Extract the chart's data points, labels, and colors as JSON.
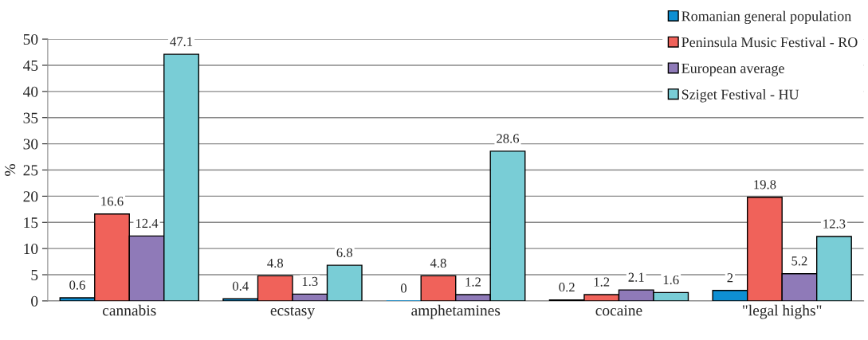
{
  "chart_data": {
    "type": "bar",
    "ylabel": "%",
    "categories": [
      "cannabis",
      "ecstasy",
      "amphetamines",
      "cocaine",
      "\"legal highs\""
    ],
    "series": [
      {
        "name": "Romanian general population",
        "color": "#0e8fd3",
        "values": [
          0.6,
          0.4,
          0,
          0.2,
          2
        ]
      },
      {
        "name": "Peninsula Music Festival - RO",
        "color": "#f0625a",
        "values": [
          16.6,
          4.8,
          4.8,
          1.2,
          19.8
        ]
      },
      {
        "name": "European average",
        "color": "#8f7ab8",
        "values": [
          12.4,
          1.3,
          1.2,
          2.1,
          5.2
        ]
      },
      {
        "name": "Sziget Festival - HU",
        "color": "#79cdd6",
        "values": [
          47.1,
          6.8,
          28.6,
          1.6,
          12.3
        ]
      }
    ],
    "ylim": [
      0,
      50
    ],
    "yticks": [
      0,
      5,
      10,
      15,
      20,
      25,
      30,
      35,
      40,
      45,
      50
    ],
    "grid": "y",
    "legend": "top right",
    "data_labels": true
  }
}
